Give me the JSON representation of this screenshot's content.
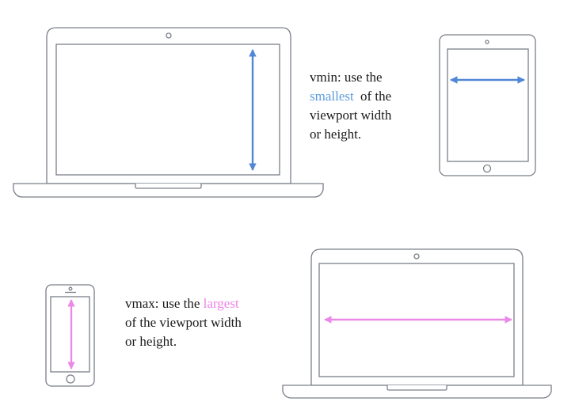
{
  "colors": {
    "outline": "#7a7f88",
    "vmin_accent": "#5b9be0",
    "vmax_accent": "#ee82e8",
    "arrow_blue": "#4f86d6",
    "arrow_pink": "#ea8ae6"
  },
  "vmin": {
    "line1": "vmin: use the",
    "highlight": "smallest",
    "after_highlight": "of the",
    "line3": "viewport width",
    "line4": "or height."
  },
  "vmax": {
    "prefix": "vmax: use the",
    "highlight": "largest",
    "line2": "of the viewport width",
    "line3": "or height."
  },
  "icons": [
    "laptop-icon",
    "tablet-icon",
    "phone-icon",
    "laptop-icon",
    "vertical-arrow-icon",
    "horizontal-arrow-icon"
  ]
}
